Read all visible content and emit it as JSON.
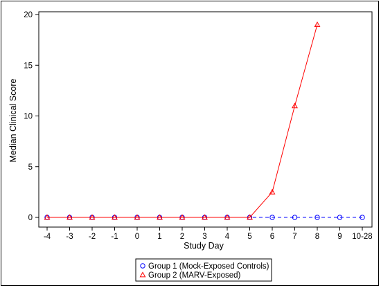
{
  "chart_data": {
    "type": "line",
    "title": "",
    "xlabel": "Study Day",
    "ylabel": "Median Clinical Score",
    "categories": [
      "-4",
      "-3",
      "-2",
      "-1",
      "0",
      "1",
      "2",
      "3",
      "4",
      "5",
      "6",
      "7",
      "8",
      "9",
      "10-28"
    ],
    "ylim": [
      0,
      20
    ],
    "yticks": [
      0,
      5,
      10,
      15,
      20
    ],
    "grid": false,
    "legend_position": "bottom-center",
    "series": [
      {
        "name": "Group 1 (Mock-Exposed Controls)",
        "color": "#0000ff",
        "marker": "circle",
        "line_style": "dashed",
        "values": [
          0,
          0,
          0,
          0,
          0,
          0,
          0,
          0,
          0,
          0,
          0,
          0,
          0,
          0,
          0
        ]
      },
      {
        "name": "Group 2 (MARV-Exposed)",
        "color": "#ff0000",
        "marker": "triangle",
        "line_style": "solid",
        "values": [
          0,
          0,
          0,
          0,
          0,
          0,
          0,
          0,
          0,
          0,
          2.5,
          11,
          19,
          null,
          null
        ]
      }
    ]
  }
}
